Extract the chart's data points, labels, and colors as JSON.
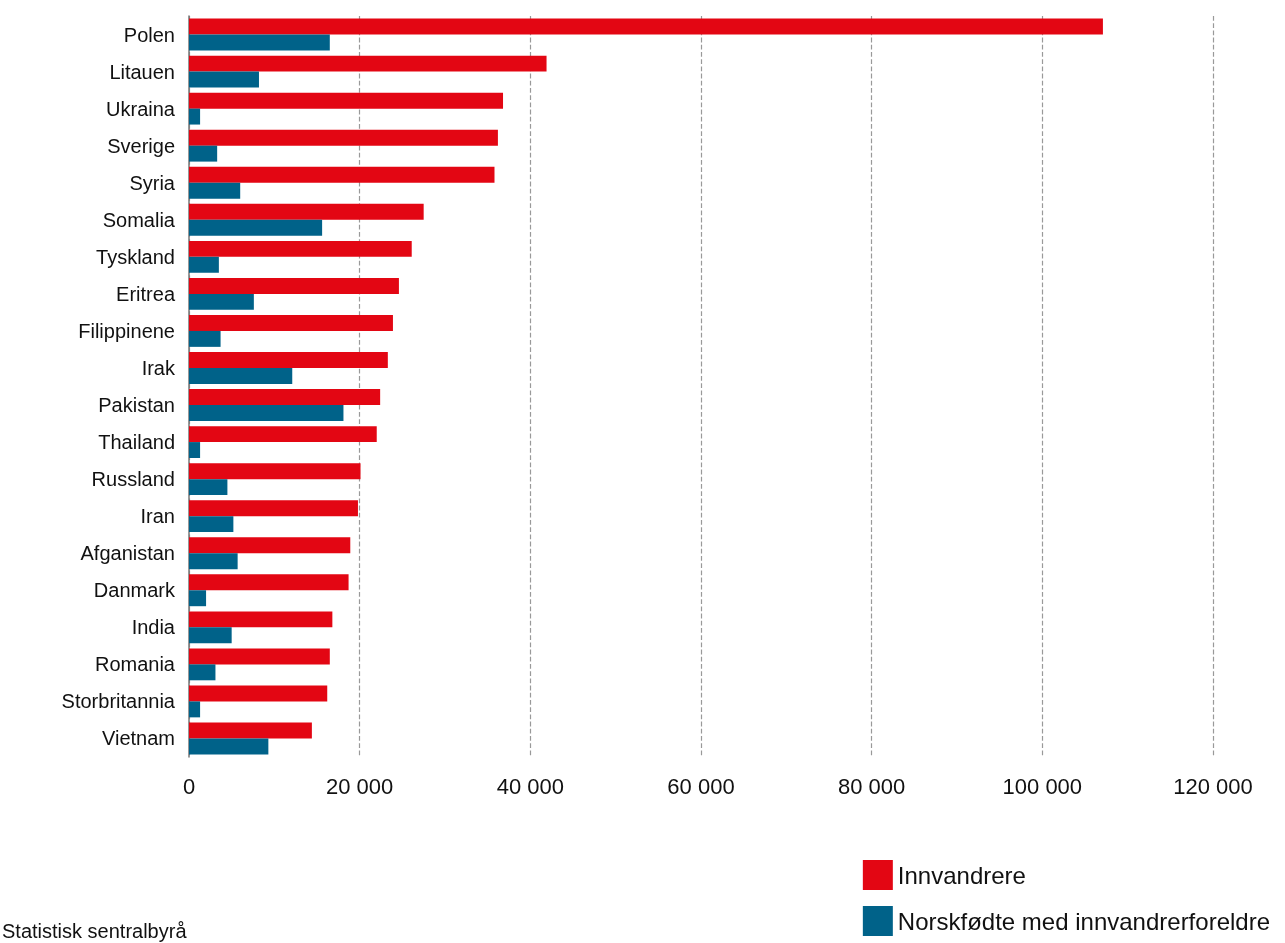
{
  "chart_data": {
    "type": "bar",
    "orientation": "horizontal",
    "categories": [
      "Polen",
      "Litauen",
      "Ukraina",
      "Sverige",
      "Syria",
      "Somalia",
      "Tyskland",
      "Eritrea",
      "Filippinene",
      "Irak",
      "Pakistan",
      "Thailand",
      "Russland",
      "Iran",
      "Afganistan",
      "Danmark",
      "India",
      "Romania",
      "Storbritannia",
      "Vietnam"
    ],
    "series": [
      {
        "name": "Innvandrere",
        "color": "#e30613",
        "values": [
          107100,
          41900,
          36800,
          36200,
          35800,
          27500,
          26100,
          24600,
          23900,
          23300,
          22400,
          22000,
          20100,
          19800,
          18900,
          18700,
          16800,
          16500,
          16200,
          14400
        ]
      },
      {
        "name": "Norskfødte med innvandrerforeldre",
        "color": "#006289",
        "values": [
          16500,
          8200,
          1300,
          3300,
          6000,
          15600,
          3500,
          7600,
          3700,
          12100,
          18100,
          1300,
          4500,
          5200,
          5700,
          2000,
          5000,
          3100,
          1300,
          9300
        ]
      }
    ],
    "xlim": [
      0,
      120000
    ],
    "xticks": [
      0,
      {
        "value": 20000,
        "label": "20 000"
      },
      {
        "value": 40000,
        "label": "40 000"
      },
      {
        "value": 60000,
        "label": "60 000"
      },
      {
        "value": 80000,
        "label": "80 000"
      },
      {
        "value": 100000,
        "label": "100 000"
      },
      {
        "value": 120000,
        "label": "120 000"
      }
    ],
    "grid": "x",
    "legend": "bottom right",
    "annotations": [
      "Statistisk sentralbyrå"
    ]
  }
}
